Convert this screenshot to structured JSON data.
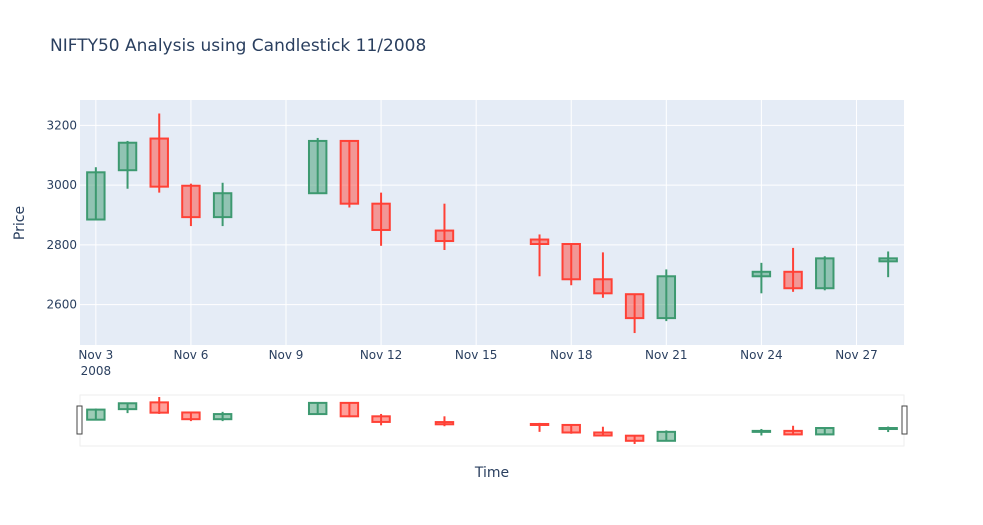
{
  "chart_data": {
    "type": "candlestick",
    "title": "NIFTY50 Analysis using Candlestick 11/2008",
    "xlabel": "Time",
    "ylabel": "Price",
    "x_range": [
      "2008-11-02T12:00",
      "2008-11-28T12:00"
    ],
    "y_range": [
      2465,
      3285
    ],
    "y_ticks": [
      2600,
      2800,
      3000,
      3200
    ],
    "y_tick_labels": [
      "2600",
      "2800",
      "3000",
      "3200"
    ],
    "x_ticks": [
      "2008-11-03",
      "2008-11-06",
      "2008-11-09",
      "2008-11-12",
      "2008-11-15",
      "2008-11-18",
      "2008-11-21",
      "2008-11-24",
      "2008-11-27"
    ],
    "x_tick_labels": [
      "Nov 3",
      "Nov 6",
      "Nov 9",
      "Nov 12",
      "Nov 15",
      "Nov 18",
      "Nov 21",
      "Nov 24",
      "Nov 27"
    ],
    "x_tick_sublabel": "2008",
    "increasing_color": "#3d9970",
    "decreasing_color": "#ff4136",
    "grid": true,
    "rangeslider": true,
    "candles": [
      {
        "date": "2008-11-03",
        "open": 2885,
        "high": 3060,
        "low": 2885,
        "close": 3043
      },
      {
        "date": "2008-11-04",
        "open": 3050,
        "high": 3148,
        "low": 2988,
        "close": 3142
      },
      {
        "date": "2008-11-05",
        "open": 3156,
        "high": 3240,
        "low": 2975,
        "close": 2995
      },
      {
        "date": "2008-11-06",
        "open": 2998,
        "high": 3005,
        "low": 2863,
        "close": 2893
      },
      {
        "date": "2008-11-07",
        "open": 2893,
        "high": 3008,
        "low": 2863,
        "close": 2973
      },
      {
        "date": "2008-11-10",
        "open": 2973,
        "high": 3158,
        "low": 2973,
        "close": 3148
      },
      {
        "date": "2008-11-11",
        "open": 3148,
        "high": 3148,
        "low": 2925,
        "close": 2938
      },
      {
        "date": "2008-11-12",
        "open": 2938,
        "high": 2975,
        "low": 2797,
        "close": 2850
      },
      {
        "date": "2008-11-14",
        "open": 2848,
        "high": 2938,
        "low": 2783,
        "close": 2813
      },
      {
        "date": "2008-11-17",
        "open": 2818,
        "high": 2835,
        "low": 2695,
        "close": 2803
      },
      {
        "date": "2008-11-18",
        "open": 2803,
        "high": 2803,
        "low": 2665,
        "close": 2685
      },
      {
        "date": "2008-11-19",
        "open": 2685,
        "high": 2775,
        "low": 2623,
        "close": 2638
      },
      {
        "date": "2008-11-20",
        "open": 2635,
        "high": 2635,
        "low": 2505,
        "close": 2555
      },
      {
        "date": "2008-11-21",
        "open": 2555,
        "high": 2718,
        "low": 2545,
        "close": 2695
      },
      {
        "date": "2008-11-24",
        "open": 2695,
        "high": 2740,
        "low": 2638,
        "close": 2710
      },
      {
        "date": "2008-11-25",
        "open": 2710,
        "high": 2790,
        "low": 2643,
        "close": 2655
      },
      {
        "date": "2008-11-26",
        "open": 2655,
        "high": 2762,
        "low": 2648,
        "close": 2755
      },
      {
        "date": "2008-11-28",
        "open": 2745,
        "high": 2778,
        "low": 2692,
        "close": 2755
      }
    ]
  }
}
